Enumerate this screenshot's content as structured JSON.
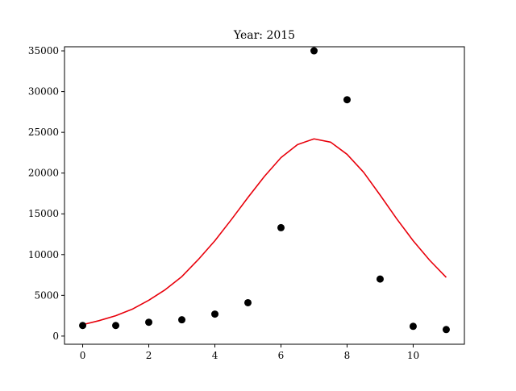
{
  "chart_data": {
    "type": "scatter",
    "title": "Year: 2015",
    "xlabel": "",
    "ylabel": "",
    "xlim": [
      -0.55,
      11.55
    ],
    "ylim": [
      -1000,
      35500
    ],
    "x_ticks": [
      0,
      2,
      4,
      6,
      8,
      10
    ],
    "y_ticks": [
      0,
      5000,
      10000,
      15000,
      20000,
      25000,
      30000,
      35000
    ],
    "grid": false,
    "legend": "none",
    "points": {
      "color": "#000000",
      "x": [
        0,
        1,
        2,
        3,
        4,
        5,
        6,
        7,
        8,
        9,
        10,
        11
      ],
      "y": [
        1300,
        1300,
        1700,
        2000,
        2700,
        4100,
        13300,
        35000,
        29000,
        7000,
        1200,
        800
      ]
    },
    "fit_curve": {
      "type": "line",
      "color": "#e8000b",
      "x": [
        0,
        0.5,
        1,
        1.5,
        2,
        2.5,
        3,
        3.5,
        4,
        4.5,
        5,
        5.5,
        6,
        6.5,
        7,
        7.5,
        8,
        8.5,
        9,
        9.5,
        10,
        10.5,
        11
      ],
      "y": [
        1400,
        1900,
        2500,
        3300,
        4400,
        5700,
        7300,
        9400,
        11700,
        14300,
        17000,
        19600,
        21900,
        23500,
        24200,
        23800,
        22300,
        20100,
        17300,
        14400,
        11700,
        9300,
        7200
      ]
    }
  }
}
